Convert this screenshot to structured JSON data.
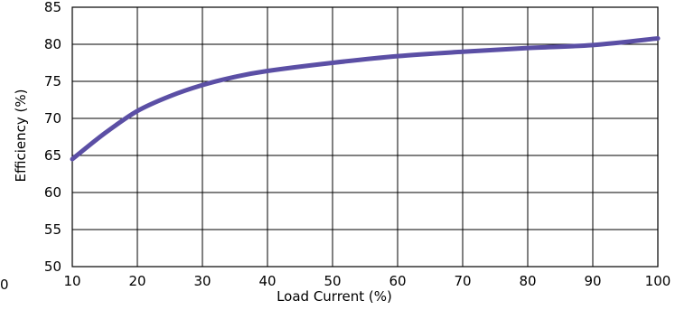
{
  "chart_data": {
    "type": "line",
    "title": "",
    "xlabel": "Load Current (%)",
    "ylabel": "Efficiency (%)",
    "xlim": [
      10,
      100
    ],
    "ylim": [
      50,
      85
    ],
    "xticks": [
      10,
      20,
      30,
      40,
      50,
      60,
      70,
      80,
      90,
      100
    ],
    "yticks": [
      50,
      55,
      60,
      65,
      70,
      75,
      80,
      85
    ],
    "xtick_labels": [
      "10",
      "20",
      "30",
      "40",
      "50",
      "60",
      "70",
      "80",
      "90",
      "100"
    ],
    "ytick_labels": [
      "50",
      "55",
      "60",
      "65",
      "70",
      "75",
      "80",
      "85"
    ],
    "stray_label": "0",
    "grid": true,
    "legend": "none",
    "series": [
      {
        "color": "#5b4fa5",
        "x": [
          10,
          15,
          20,
          25,
          30,
          35,
          40,
          50,
          60,
          70,
          80,
          90,
          100
        ],
        "y": [
          64.5,
          68.0,
          71.0,
          73.0,
          74.5,
          75.6,
          76.4,
          77.5,
          78.4,
          79.0,
          79.5,
          79.9,
          80.8
        ]
      }
    ]
  }
}
